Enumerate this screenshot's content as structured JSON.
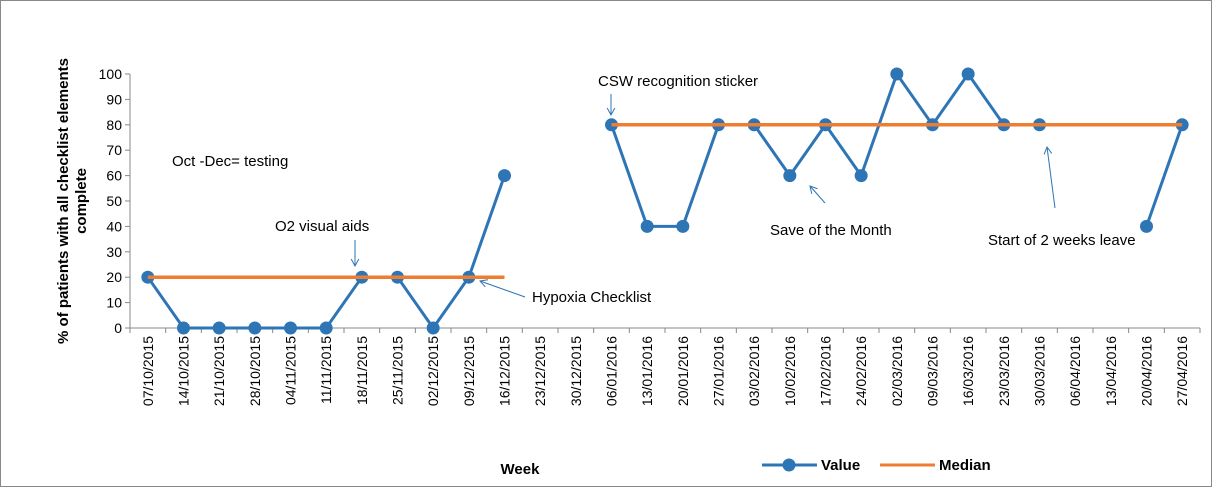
{
  "chart_data": {
    "type": "line",
    "y_label": "% of patients with all checklist  elements complete",
    "x_label": "Week",
    "categories": [
      "07/10/2015",
      "14/10/2015",
      "21/10/2015",
      "28/10/2015",
      "04/11/2015",
      "11/11/2015",
      "18/11/2015",
      "25/11/2015",
      "02/12/2015",
      "09/12/2015",
      "16/12/2015",
      "23/12/2015",
      "30/12/2015",
      "06/01/2016",
      "13/01/2016",
      "20/01/2016",
      "27/01/2016",
      "03/02/2016",
      "10/02/2016",
      "17/02/2016",
      "24/02/2016",
      "02/03/2016",
      "09/03/2016",
      "16/03/2016",
      "23/03/2016",
      "30/03/2016",
      "06/04/2016",
      "13/04/2016",
      "20/04/2016",
      "27/04/2016"
    ],
    "series": [
      {
        "name": "Value",
        "color": "#2e75b6",
        "values": [
          20,
          0,
          0,
          0,
          0,
          0,
          20,
          20,
          0,
          20,
          60,
          null,
          null,
          80,
          40,
          40,
          80,
          80,
          60,
          80,
          60,
          100,
          80,
          100,
          80,
          80,
          null,
          null,
          40,
          80
        ]
      },
      {
        "name": "Median",
        "color": "#ed7d31",
        "values": [
          20,
          20,
          20,
          20,
          20,
          20,
          20,
          20,
          20,
          20,
          20,
          null,
          null,
          80,
          80,
          80,
          80,
          80,
          80,
          80,
          80,
          80,
          80,
          80,
          80,
          80,
          80,
          80,
          80,
          80
        ]
      }
    ],
    "ylim": [
      0,
      100
    ],
    "yticks": [
      0,
      10,
      20,
      30,
      40,
      50,
      60,
      70,
      80,
      90,
      100
    ],
    "annotations": [
      "Oct -Dec= testing",
      "O2 visual aids",
      "Hypoxia Checklist",
      "CSW recognition sticker",
      "Save of the Month",
      "Start of 2 weeks leave"
    ]
  }
}
